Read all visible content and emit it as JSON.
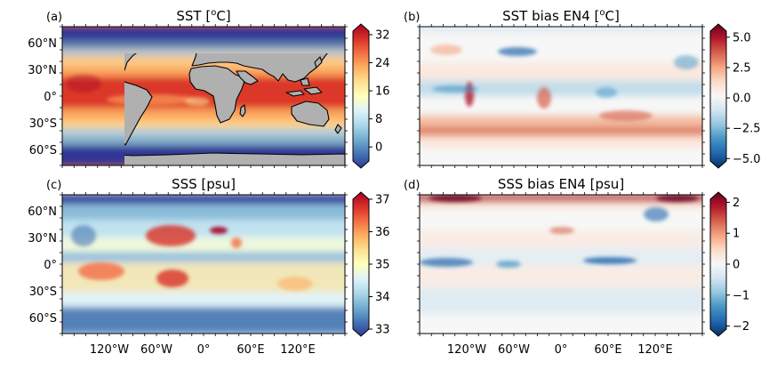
{
  "panels": [
    {
      "label": "(a)",
      "title": "SST [°C]",
      "title_main": "SST [",
      "title_sup": "o",
      "title_end": "C]",
      "field": "sst",
      "colormap": "RdYlBu_r",
      "colorbar_ticks": [
        "32",
        "24",
        "16",
        "8",
        "0"
      ],
      "colorbar_values": [
        32,
        24,
        16,
        8,
        0
      ],
      "range": [
        -4,
        33
      ]
    },
    {
      "label": "(b)",
      "title": "SST bias EN4 [°C]",
      "title_main": "SST bias EN4 [",
      "title_sup": "o",
      "title_end": "C]",
      "field": "sst_bias",
      "colormap": "RdBu_r",
      "colorbar_ticks": [
        "5.0",
        "2.5",
        "0.0",
        "−2.5",
        "−5.0"
      ],
      "colorbar_values": [
        5,
        2.5,
        0,
        -2.5,
        -5
      ],
      "range": [
        -5.2,
        5.5
      ]
    },
    {
      "label": "(c)",
      "title": "SSS [psu]",
      "field": "sss",
      "colormap": "RdYlBu_r",
      "colorbar_ticks": [
        "37",
        "36",
        "35",
        "34",
        "33"
      ],
      "colorbar_values": [
        37,
        36,
        35,
        34,
        33
      ],
      "range": [
        33,
        37
      ]
    },
    {
      "label": "(d)",
      "title": "SSS bias EN4 [psu]",
      "field": "sss_bias",
      "colormap": "RdBu_r",
      "colorbar_ticks": [
        "2",
        "1",
        "0",
        "−1",
        "−2"
      ],
      "colorbar_values": [
        2,
        1,
        0,
        -1,
        -2
      ],
      "range": [
        -2.1,
        2.1
      ]
    }
  ],
  "lat_labels": [
    "60°N",
    "30°N",
    "0°",
    "30°S",
    "60°S"
  ],
  "lon_labels": [
    "120°W",
    "60°W",
    "0°",
    "60°E",
    "120°E"
  ],
  "colors": {
    "land": "#b0b0b0",
    "coast": "#000000"
  }
}
